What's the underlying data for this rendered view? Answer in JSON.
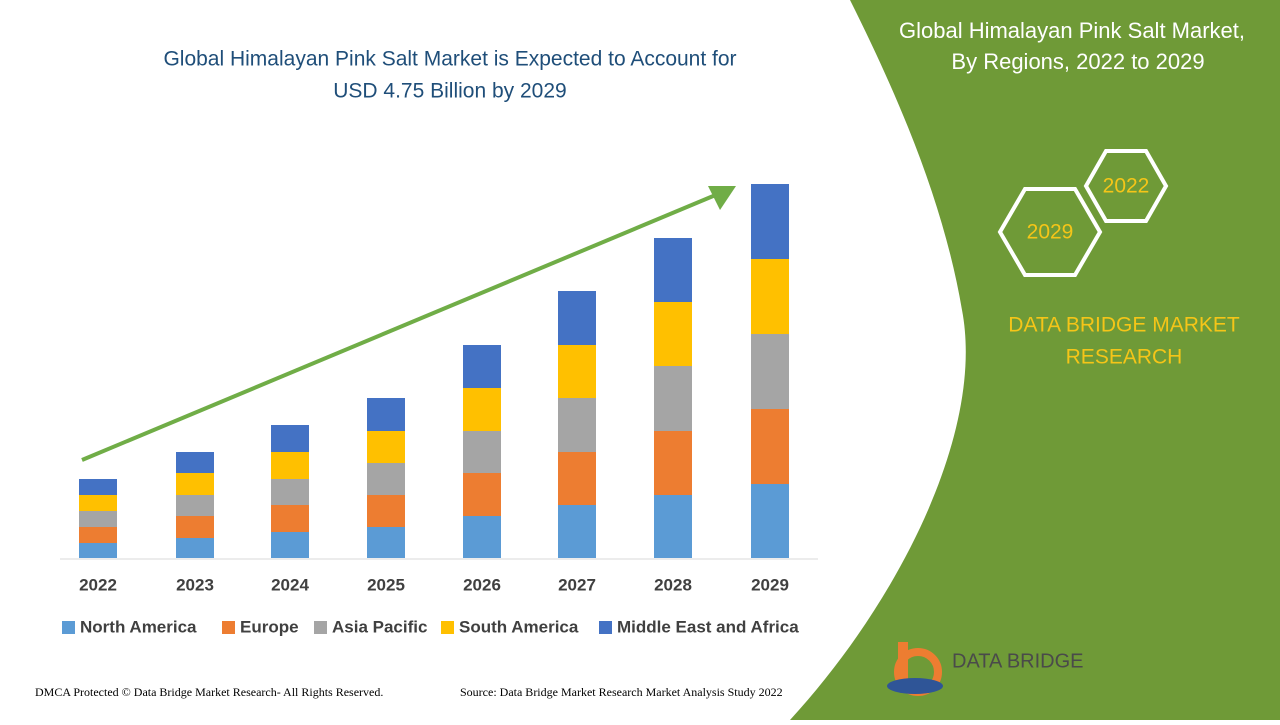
{
  "chart_data": {
    "type": "stacked_bar",
    "title": [
      "Global Himalayan Pink Salt Market is Expected to Account for",
      "USD 4.75 Billion by 2029"
    ],
    "categories": [
      "2022",
      "2023",
      "2024",
      "2025",
      "2026",
      "2027",
      "2028",
      "2029"
    ],
    "series": [
      {
        "name": "North America",
        "color": "#5b9bd5",
        "values": [
          15,
          20,
          26,
          31,
          42,
          53,
          63,
          74
        ]
      },
      {
        "name": "Europe",
        "color": "#ed7d31",
        "values": [
          16,
          22,
          27,
          32,
          43,
          53,
          64,
          75
        ]
      },
      {
        "name": "Asia Pacific",
        "color": "#a5a5a5",
        "values": [
          16,
          21,
          26,
          32,
          42,
          54,
          65,
          75
        ]
      },
      {
        "name": "South America",
        "color": "#ffc000",
        "values": [
          16,
          22,
          27,
          32,
          43,
          53,
          64,
          75
        ]
      },
      {
        "name": "Middle East and Africa",
        "color": "#4472c4",
        "values": [
          16,
          21,
          27,
          33,
          43,
          54,
          64,
          75
        ]
      }
    ]
  },
  "panel": {
    "title": [
      "Global Himalayan Pink Salt Market,",
      "By Regions, 2022 to 2029"
    ],
    "hex_top": "2022",
    "hex_bottom": "2029",
    "brand": [
      "DATA BRIDGE MARKET",
      "RESEARCH"
    ],
    "logo": "DATA BRIDGE"
  },
  "footer": {
    "left": "DMCA Protected © Data Bridge Market Research- All Rights Reserved.",
    "right": "Source: Data Bridge Market Research Market Analysis Study 2022"
  }
}
